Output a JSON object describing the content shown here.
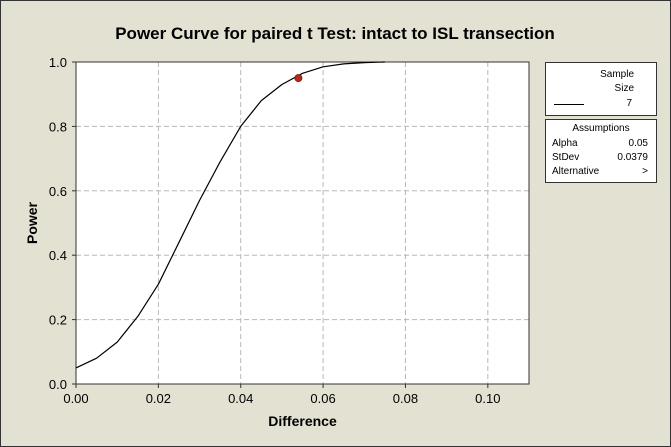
{
  "chart_data": {
    "type": "line",
    "title": "Power Curve for paired t Test: intact to ISL transection",
    "xlabel": "Difference",
    "ylabel": "Power",
    "xlim": [
      0.0,
      0.11
    ],
    "ylim": [
      0.0,
      1.0
    ],
    "xticks": [
      "0.00",
      "0.02",
      "0.04",
      "0.06",
      "0.08",
      "0.10"
    ],
    "yticks": [
      "0.0",
      "0.2",
      "0.4",
      "0.6",
      "0.8",
      "1.0"
    ],
    "grid": true,
    "series": [
      {
        "name": "7",
        "color": "#000000",
        "x": [
          0.0,
          0.005,
          0.01,
          0.015,
          0.02,
          0.025,
          0.03,
          0.035,
          0.04,
          0.045,
          0.05,
          0.055,
          0.06,
          0.065,
          0.07,
          0.075
        ],
        "y": [
          0.05,
          0.08,
          0.13,
          0.21,
          0.31,
          0.44,
          0.57,
          0.69,
          0.8,
          0.88,
          0.93,
          0.965,
          0.985,
          0.994,
          0.998,
          1.0
        ]
      }
    ],
    "marker": {
      "x": 0.054,
      "y": 0.95,
      "color": "#b5281c"
    }
  },
  "legend": {
    "size_header_1": "Sample",
    "size_header_2": "Size",
    "size_value": "7",
    "assumptions_title": "Assumptions",
    "rows": [
      {
        "key": "Alpha",
        "value": "0.05"
      },
      {
        "key": "StDev",
        "value": "0.0379"
      },
      {
        "key": "Alternative",
        "value": ">"
      }
    ]
  }
}
